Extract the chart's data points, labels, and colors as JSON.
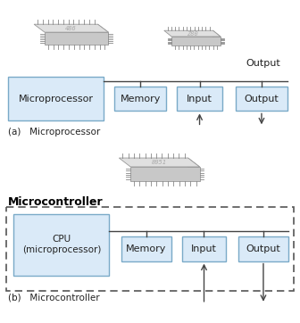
{
  "bg_color": "#ffffff",
  "box_fill": "#daeaf8",
  "box_edge": "#7aaac8",
  "fig_width": 3.36,
  "fig_height": 3.62,
  "dpi": 100,
  "label_a": "(a)   Microprocessor",
  "label_b": "(b)   Microcontroller",
  "section_b_title": "Microcontroller",
  "chip_top_color": "#e0e0e0",
  "chip_front_color": "#c8c8c8",
  "chip_right_color": "#b8b8b8",
  "chip_edge_color": "#999999",
  "chip_pin_color": "#888888",
  "chip_label_color": "#aaaaaa",
  "bus_color": "#444444",
  "dashed_color": "#555555",
  "text_color": "#222222",
  "bold_color": "#000000"
}
